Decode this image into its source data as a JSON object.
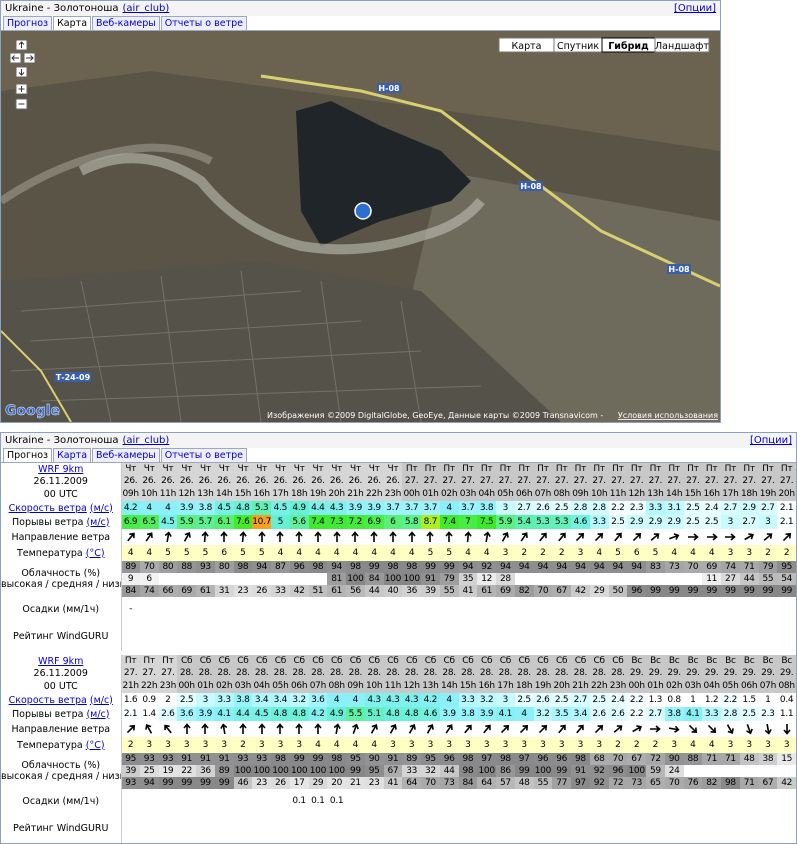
{
  "map_widget": {
    "title": "Ukraine - Золотоноша",
    "club": "(air_club)",
    "options": "[Опции]",
    "tabs": [
      "Прогноз",
      "Карта",
      "Веб-камеры",
      "Отчеты о ветре"
    ],
    "map_types": [
      "Карта",
      "Спутник",
      "Гибрид",
      "Ландшафт"
    ],
    "roads": [
      "Н-08",
      "Н-08",
      "Н-08",
      "Т-24-09"
    ],
    "logo": "Google",
    "copyright": "Изображения ©2009 DigitalGlobe, GeoEye, Данные карты ©2009 Transnavicom -",
    "terms": "Условия использования"
  },
  "forecast": {
    "title": "Ukraine - Золотоноша",
    "club": "(air_club)",
    "options": "[Опции]",
    "tabs": [
      "Прогноз",
      "Карта",
      "Веб-камеры",
      "Отчеты о ветре"
    ],
    "labels": {
      "speed": "Скорость ветра",
      "speed_unit": "(м/с)",
      "gusts": "Порывы ветра",
      "gusts_unit": "(м/с)",
      "direction": "Направление ветра",
      "temperature": "Температура",
      "temperature_unit": "(°C)",
      "clouds": "Облачность (%)",
      "clouds_levels": "высокая / средняя / низкая",
      "precip": "Осадки (мм/1ч)",
      "rating": "Рейтинг WindGURU"
    },
    "tables": [
      {
        "model": "WRF 9km",
        "init_date": "26.11.2009",
        "init_time": "00 UTC",
        "days": [
          "Чт",
          "Чт",
          "Чт",
          "Чт",
          "Чт",
          "Чт",
          "Чт",
          "Чт",
          "Чт",
          "Чт",
          "Чт",
          "Чт",
          "Чт",
          "Чт",
          "Чт",
          "Пт",
          "Пт",
          "Пт",
          "Пт",
          "Пт",
          "Пт",
          "Пт",
          "Пт",
          "Пт",
          "Пт",
          "Пт",
          "Пт",
          "Пт",
          "Пт",
          "Пт",
          "Пт",
          "Пт",
          "Пт",
          "Пт",
          "Пт",
          "Пт"
        ],
        "dates": [
          "26.",
          "26.",
          "26.",
          "26.",
          "26.",
          "26.",
          "26.",
          "26.",
          "26.",
          "26.",
          "26.",
          "26.",
          "26.",
          "26.",
          "26.",
          "27.",
          "27.",
          "27.",
          "27.",
          "27.",
          "27.",
          "27.",
          "27.",
          "27.",
          "27.",
          "27.",
          "27.",
          "27.",
          "27.",
          "27.",
          "27.",
          "27.",
          "27.",
          "27.",
          "27.",
          "27."
        ],
        "hours": [
          "09h",
          "10h",
          "11h",
          "12h",
          "13h",
          "14h",
          "15h",
          "16h",
          "17h",
          "18h",
          "19h",
          "20h",
          "21h",
          "22h",
          "23h",
          "00h",
          "01h",
          "02h",
          "03h",
          "04h",
          "05h",
          "06h",
          "07h",
          "08h",
          "09h",
          "10h",
          "11h",
          "12h",
          "13h",
          "14h",
          "15h",
          "16h",
          "17h",
          "18h",
          "19h",
          "20h"
        ],
        "wind_speed": [
          4.2,
          4,
          4,
          3.9,
          3.8,
          4.5,
          4.8,
          5.3,
          4.5,
          4.9,
          4.4,
          4.3,
          3.9,
          3.9,
          3.7,
          3.7,
          3.7,
          4,
          3.7,
          3.8,
          3,
          2.7,
          2.6,
          2.5,
          2.8,
          2.8,
          2.2,
          2.3,
          3.3,
          3.1,
          2.5,
          2.4,
          2.7,
          2.9,
          2.7,
          2.1
        ],
        "gusts": [
          6.9,
          6.5,
          4.5,
          5.9,
          5.7,
          6.1,
          7.6,
          10.7,
          5,
          5.6,
          7.4,
          7.3,
          7.2,
          6.9,
          6,
          5.8,
          8.7,
          7.4,
          7,
          7.5,
          5.9,
          5.4,
          5.3,
          5.3,
          4.6,
          3.3,
          2.5,
          2.9,
          2.9,
          2.9,
          2.5,
          2.5,
          3,
          2.7,
          3,
          2.1
        ],
        "direction_deg": [
          40,
          35,
          10,
          30,
          5,
          0,
          5,
          0,
          0,
          0,
          0,
          0,
          0,
          0,
          0,
          0,
          0,
          0,
          5,
          10,
          30,
          35,
          40,
          40,
          45,
          45,
          40,
          45,
          50,
          70,
          90,
          90,
          90,
          60,
          50,
          45
        ],
        "temperature": [
          4,
          4,
          5,
          5,
          5,
          6,
          5,
          5,
          4,
          4,
          4,
          4,
          4,
          4,
          4,
          4,
          5,
          5,
          4,
          4,
          3,
          2,
          2,
          2,
          3,
          4,
          5,
          6,
          5,
          4,
          4,
          4,
          3,
          3,
          2,
          2
        ],
        "cloud_high": [
          89,
          70,
          80,
          88,
          93,
          80,
          98,
          94,
          87,
          96,
          98,
          94,
          98,
          99,
          98,
          98,
          99,
          99,
          94,
          92,
          94,
          94,
          94,
          94,
          94,
          94,
          94,
          94,
          83,
          73,
          70,
          69,
          74,
          71,
          79,
          95
        ],
        "cloud_mid": [
          9,
          6,
          null,
          null,
          null,
          null,
          null,
          null,
          null,
          null,
          null,
          81,
          100,
          84,
          100,
          100,
          91,
          79,
          35,
          12,
          28,
          null,
          null,
          null,
          null,
          null,
          null,
          null,
          null,
          null,
          null,
          11,
          27,
          44,
          55,
          54
        ],
        "cloud_low": [
          84,
          74,
          66,
          69,
          61,
          31,
          23,
          26,
          33,
          42,
          51,
          61,
          56,
          44,
          40,
          36,
          39,
          55,
          41,
          61,
          69,
          82,
          70,
          67,
          42,
          29,
          50,
          96,
          99,
          99,
          99,
          99,
          99,
          99,
          99,
          99
        ],
        "precip": [
          "-",
          null,
          null,
          null,
          null,
          null,
          null,
          null,
          null,
          null,
          null,
          null,
          null,
          null,
          null,
          null,
          null,
          null,
          null,
          null,
          null,
          null,
          null,
          null,
          null,
          null,
          null,
          null,
          null,
          null,
          null,
          null,
          null,
          null,
          null,
          null
        ]
      },
      {
        "model": "WRF 9km",
        "init_date": "26.11.2009",
        "init_time": "00 UTC",
        "days": [
          "Пт",
          "Пт",
          "Пт",
          "Сб",
          "Сб",
          "Сб",
          "Сб",
          "Сб",
          "Сб",
          "Сб",
          "Сб",
          "Сб",
          "Сб",
          "Сб",
          "Сб",
          "Сб",
          "Сб",
          "Сб",
          "Сб",
          "Сб",
          "Сб",
          "Сб",
          "Сб",
          "Сб",
          "Сб",
          "Сб",
          "Сб",
          "Вс",
          "Вс",
          "Вс",
          "Вс",
          "Вс",
          "Вс",
          "Вс",
          "Вс",
          "Вс"
        ],
        "dates": [
          "27.",
          "27.",
          "27.",
          "28.",
          "28.",
          "28.",
          "28.",
          "28.",
          "28.",
          "28.",
          "28.",
          "28.",
          "28.",
          "28.",
          "28.",
          "28.",
          "28.",
          "28.",
          "28.",
          "28.",
          "28.",
          "28.",
          "28.",
          "28.",
          "28.",
          "28.",
          "28.",
          "29.",
          "29.",
          "29.",
          "29.",
          "29.",
          "29.",
          "29.",
          "29.",
          "29."
        ],
        "hours": [
          "21h",
          "22h",
          "23h",
          "00h",
          "01h",
          "02h",
          "03h",
          "04h",
          "05h",
          "06h",
          "07h",
          "08h",
          "09h",
          "10h",
          "11h",
          "12h",
          "13h",
          "14h",
          "15h",
          "16h",
          "17h",
          "18h",
          "19h",
          "20h",
          "21h",
          "22h",
          "23h",
          "00h",
          "01h",
          "02h",
          "03h",
          "04h",
          "05h",
          "06h",
          "07h",
          "08h"
        ],
        "wind_speed": [
          1.6,
          0.9,
          2,
          2.5,
          3,
          3.3,
          3.8,
          3.4,
          3.4,
          3.2,
          3.6,
          4,
          4,
          4.3,
          4.3,
          4.3,
          4.2,
          4,
          3.3,
          3.2,
          3,
          2.5,
          2.6,
          2.5,
          2.7,
          2.5,
          2.4,
          2.2,
          1.3,
          0.8,
          1,
          1.2,
          2.2,
          1.5,
          1,
          0.4
        ],
        "gusts": [
          2.1,
          1.4,
          2.6,
          3.6,
          3.9,
          4.1,
          4.4,
          4.5,
          4.8,
          4.8,
          4.2,
          4.9,
          5.5,
          5.1,
          4.8,
          4.8,
          4.6,
          3.9,
          3.8,
          3.9,
          4.1,
          4,
          3.2,
          3.5,
          3.4,
          2.6,
          2.6,
          2.2,
          2.7,
          3.8,
          4.1,
          3.3,
          2.8,
          2.5,
          2.3,
          1.1
        ],
        "direction_deg": [
          45,
          330,
          320,
          0,
          0,
          350,
          0,
          0,
          0,
          0,
          0,
          10,
          20,
          30,
          30,
          30,
          30,
          35,
          40,
          40,
          45,
          45,
          45,
          40,
          40,
          45,
          50,
          60,
          90,
          100,
          135,
          135,
          150,
          160,
          170,
          180
        ],
        "temperature": [
          2,
          3,
          3,
          3,
          3,
          3,
          2,
          3,
          3,
          3,
          4,
          4,
          4,
          4,
          3,
          3,
          3,
          3,
          3,
          3,
          3,
          3,
          3,
          3,
          3,
          3,
          2,
          2,
          2,
          3,
          4,
          4,
          3,
          3,
          3,
          3
        ],
        "cloud_high": [
          95,
          93,
          93,
          91,
          91,
          91,
          93,
          93,
          98,
          99,
          99,
          98,
          95,
          90,
          91,
          89,
          95,
          96,
          98,
          97,
          98,
          97,
          96,
          96,
          98,
          68,
          70,
          67,
          72,
          90,
          88,
          71,
          71,
          48,
          38,
          15
        ],
        "cloud_mid": [
          39,
          25,
          19,
          22,
          36,
          89,
          100,
          100,
          100,
          100,
          100,
          100,
          99,
          95,
          67,
          33,
          32,
          44,
          98,
          100,
          86,
          99,
          100,
          99,
          91,
          92,
          96,
          100,
          59,
          24,
          null,
          null,
          null,
          null,
          null,
          null
        ],
        "cloud_low": [
          93,
          94,
          99,
          99,
          99,
          99,
          46,
          23,
          26,
          17,
          29,
          20,
          21,
          23,
          41,
          64,
          70,
          73,
          84,
          64,
          57,
          48,
          55,
          77,
          97,
          92,
          72,
          73,
          65,
          70,
          76,
          82,
          98,
          71,
          67,
          42
        ],
        "precip": [
          null,
          null,
          null,
          null,
          null,
          null,
          null,
          null,
          null,
          0.1,
          0.1,
          0.1,
          null,
          null,
          null,
          null,
          null,
          null,
          null,
          null,
          null,
          null,
          null,
          null,
          null,
          null,
          null,
          null,
          null,
          null,
          null,
          null,
          null,
          null,
          null,
          null
        ]
      }
    ]
  }
}
